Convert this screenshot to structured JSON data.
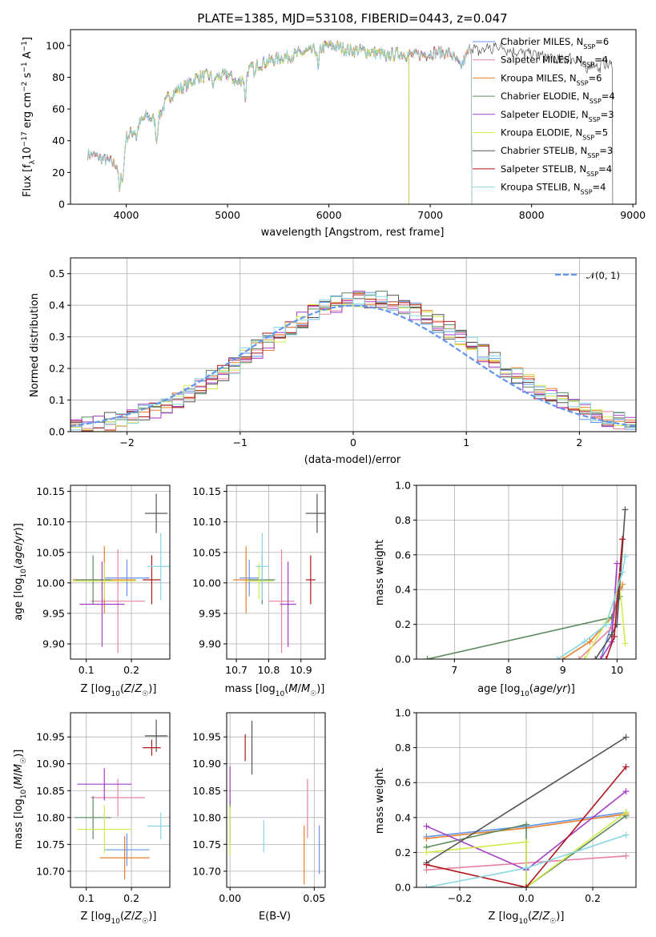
{
  "colors": {
    "Chabrier MILES": "#6495ed",
    "Salpeter MILES": "#e7839f",
    "Kroupa MILES": "#e87e2a",
    "Chabrier ELODIE": "#5a8a5f",
    "Salpeter ELODIE": "#a63ec7",
    "Kroupa ELODIE": "#d4ea4b",
    "Chabrier STELIB": "#555555",
    "Salpeter STELIB": "#b0161e",
    "Kroupa STELIB": "#88d8e2"
  },
  "chart_data": [
    {
      "id": "spectrum",
      "type": "line",
      "title": "PLATE=1385, MJD=53108, FIBERID=0443, z=0.047",
      "xlabel": "wavelength [Angstrom, rest frame]",
      "ylabel": "Flux [f_λ 10^-17 erg cm^-2 s^-1 A^-1]",
      "xlim": [
        3450,
        9030
      ],
      "ylim": [
        0,
        110
      ],
      "xticks": [
        4000,
        5000,
        6000,
        7000,
        8000,
        9000
      ],
      "yticks": [
        0,
        20,
        40,
        60,
        80,
        100
      ],
      "legend": "top-right",
      "x": [
        3620,
        3700,
        3800,
        3900,
        3950,
        4000,
        4100,
        4200,
        4300,
        4400,
        4500,
        4600,
        4700,
        4800,
        4900,
        5000,
        5100,
        5200,
        5300,
        5400,
        5500,
        5600,
        5700,
        5800,
        5900,
        6000,
        6100,
        6200,
        6300,
        6400,
        6500,
        6600,
        6700,
        6800,
        6900,
        7000,
        7100,
        7200,
        7300,
        7400,
        7500,
        7600,
        7700,
        7800,
        7900,
        8000,
        8100,
        8200,
        8300,
        8400,
        8500,
        8600,
        8700,
        8800
      ],
      "flux": [
        32,
        30,
        28,
        25,
        20,
        42,
        48,
        56,
        52,
        66,
        72,
        75,
        80,
        81,
        80,
        82,
        76,
        84,
        88,
        90,
        92,
        93,
        95,
        96,
        98,
        100,
        99,
        97,
        97,
        96,
        95,
        94,
        95,
        94,
        94,
        95,
        96,
        95,
        86,
        99,
        96,
        101,
        99,
        97,
        95,
        95,
        93,
        92,
        91,
        92,
        90,
        88,
        89,
        88
      ],
      "series": [
        {
          "name": "Chabrier MILES, N_SSP=6",
          "color_key": "Chabrier MILES",
          "wmin": 3620,
          "wmax": 7410
        },
        {
          "name": "Salpeter MILES, N_SSP=4",
          "color_key": "Salpeter MILES",
          "wmin": 3620,
          "wmax": 7410
        },
        {
          "name": "Kroupa MILES, N_SSP=6",
          "color_key": "Kroupa MILES",
          "wmin": 3620,
          "wmax": 7410
        },
        {
          "name": "Chabrier ELODIE, N_SSP=4",
          "color_key": "Chabrier ELODIE",
          "wmin": 3910,
          "wmax": 6790
        },
        {
          "name": "Salpeter ELODIE, N_SSP=3",
          "color_key": "Salpeter ELODIE",
          "wmin": 3910,
          "wmax": 6790
        },
        {
          "name": "Kroupa ELODIE, N_SSP=5",
          "color_key": "Kroupa ELODIE",
          "wmin": 3910,
          "wmax": 6790
        },
        {
          "name": "Chabrier STELIB, N_SSP=3",
          "color_key": "Chabrier STELIB",
          "wmin": 3620,
          "wmax": 8800
        },
        {
          "name": "Salpeter STELIB, N_SSP=4",
          "color_key": "Salpeter STELIB",
          "wmin": 3620,
          "wmax": 7410
        },
        {
          "name": "Kroupa STELIB, N_SSP=4",
          "color_key": "Kroupa STELIB",
          "wmin": 3620,
          "wmax": 7410
        }
      ]
    },
    {
      "id": "residuals",
      "type": "line",
      "xlabel": "(data-model)/error",
      "ylabel": "Normed distribution",
      "xlim": [
        -2.5,
        2.5
      ],
      "ylim": [
        0,
        0.55
      ],
      "xticks": [
        -2,
        -1,
        0,
        1,
        2
      ],
      "yticks": [
        0.0,
        0.1,
        0.2,
        0.3,
        0.4,
        0.5
      ],
      "grid": true,
      "legend": "top-right",
      "gaussian_label": "𝒩(0, 1)",
      "gaussian_color": "#6495ed",
      "bin_width": 0.1
    },
    {
      "id": "age_vs_Z",
      "type": "scatter",
      "xlabel": "Z [log₁₀(Z/Z☉)]",
      "ylabel": "age  [log₁₀(age/yr)]",
      "xlim": [
        0.065,
        0.285
      ],
      "ylim": [
        9.875,
        10.16
      ],
      "xticks": [
        0.1,
        0.2
      ],
      "yticks": [
        9.9,
        9.95,
        10.0,
        10.05,
        10.1,
        10.15
      ],
      "grid": true,
      "points": [
        {
          "color_key": "Chabrier MILES",
          "x": 0.19,
          "xerr": 0.05,
          "y": 10.008,
          "yerr": 0.03
        },
        {
          "color_key": "Salpeter MILES",
          "x": 0.17,
          "xerr": 0.06,
          "y": 9.97,
          "yerr": 0.085
        },
        {
          "color_key": "Kroupa MILES",
          "x": 0.14,
          "xerr": 0.07,
          "y": 10.005,
          "yerr": 0.055
        },
        {
          "color_key": "Chabrier ELODIE",
          "x": 0.115,
          "xerr": 0.04,
          "y": 10.005,
          "yerr": 0.04
        },
        {
          "color_key": "Salpeter ELODIE",
          "x": 0.135,
          "xerr": 0.05,
          "y": 9.965,
          "yerr": 0.07
        },
        {
          "color_key": "Kroupa ELODIE",
          "x": 0.14,
          "xerr": 0.07,
          "y": 10.003,
          "yerr": 0.03
        },
        {
          "color_key": "Chabrier STELIB",
          "x": 0.255,
          "xerr": 0.025,
          "y": 10.114,
          "yerr": 0.032
        },
        {
          "color_key": "Salpeter STELIB",
          "x": 0.245,
          "xerr": 0.02,
          "y": 10.005,
          "yerr": 0.04
        },
        {
          "color_key": "Kroupa STELIB",
          "x": 0.265,
          "xerr": 0.03,
          "y": 10.027,
          "yerr": 0.055
        }
      ]
    },
    {
      "id": "age_vs_mass",
      "type": "scatter",
      "xlabel": "mass [log₁₀(M/M☉)]",
      "xlim": [
        10.67,
        10.975
      ],
      "ylim": [
        9.875,
        10.16
      ],
      "xticks": [
        10.7,
        10.8,
        10.9
      ],
      "yticks": [
        9.9,
        9.95,
        10.0,
        10.05,
        10.1,
        10.15
      ],
      "grid": true,
      "points": [
        {
          "color_key": "Chabrier MILES",
          "x": 10.74,
          "xerr": 0.03,
          "y": 10.008,
          "yerr": 0.03
        },
        {
          "color_key": "Salpeter MILES",
          "x": 10.84,
          "xerr": 0.04,
          "y": 9.97,
          "yerr": 0.085
        },
        {
          "color_key": "Kroupa MILES",
          "x": 10.73,
          "xerr": 0.04,
          "y": 10.005,
          "yerr": 0.055
        },
        {
          "color_key": "Chabrier ELODIE",
          "x": 10.78,
          "xerr": 0.04,
          "y": 10.005,
          "yerr": 0.04
        },
        {
          "color_key": "Salpeter ELODIE",
          "x": 10.86,
          "xerr": 0.025,
          "y": 9.965,
          "yerr": 0.07
        },
        {
          "color_key": "Kroupa ELODIE",
          "x": 10.77,
          "xerr": 0.045,
          "y": 10.003,
          "yerr": 0.03
        },
        {
          "color_key": "Chabrier STELIB",
          "x": 10.95,
          "xerr": 0.035,
          "y": 10.114,
          "yerr": 0.032
        },
        {
          "color_key": "Salpeter STELIB",
          "x": 10.93,
          "xerr": 0.015,
          "y": 10.005,
          "yerr": 0.04
        },
        {
          "color_key": "Kroupa STELIB",
          "x": 10.78,
          "xerr": 0.02,
          "y": 10.027,
          "yerr": 0.055
        }
      ]
    },
    {
      "id": "mass_weight_vs_age",
      "type": "line",
      "xlabel": "age  [log₁₀(age/yr)]",
      "ylabel": "mass weight",
      "xlim": [
        6.3,
        10.35
      ],
      "ylim": [
        0,
        1
      ],
      "xticks": [
        7,
        8,
        9,
        10
      ],
      "yticks": [
        0.0,
        0.2,
        0.4,
        0.6,
        0.8,
        1.0
      ],
      "grid": true,
      "series": [
        {
          "color_key": "Chabrier MILES",
          "x": [
            9.7,
            9.9,
            10.0,
            10.05
          ],
          "y": [
            0.0,
            0.2,
            0.35,
            0.41
          ]
        },
        {
          "color_key": "Salpeter MILES",
          "x": [
            9.3,
            9.9,
            10.05
          ],
          "y": [
            0.0,
            0.18,
            0.4
          ]
        },
        {
          "color_key": "Kroupa MILES",
          "x": [
            9.0,
            9.5,
            9.9,
            10.1
          ],
          "y": [
            0.0,
            0.1,
            0.24,
            0.43
          ]
        },
        {
          "color_key": "Chabrier ELODIE",
          "x": [
            6.5,
            9.9,
            10.05
          ],
          "y": [
            0.0,
            0.24,
            0.36
          ]
        },
        {
          "color_key": "Salpeter ELODIE",
          "x": [
            9.7,
            9.9,
            10.0
          ],
          "y": [
            0.0,
            0.1,
            0.55
          ]
        },
        {
          "color_key": "Kroupa ELODIE",
          "x": [
            9.4,
            9.8,
            10.05,
            10.15
          ],
          "y": [
            0.0,
            0.21,
            0.43,
            0.09
          ]
        },
        {
          "color_key": "Chabrier STELIB",
          "x": [
            9.6,
            9.9,
            10.0,
            10.15
          ],
          "y": [
            0.0,
            0.14,
            0.2,
            0.86
          ]
        },
        {
          "color_key": "Salpeter STELIB",
          "x": [
            9.8,
            9.95,
            10.1
          ],
          "y": [
            0.0,
            0.13,
            0.69
          ]
        },
        {
          "color_key": "Kroupa STELIB",
          "x": [
            8.9,
            9.4,
            9.8,
            10.1,
            10.15
          ],
          "y": [
            0.0,
            0.1,
            0.2,
            0.5,
            0.59
          ]
        }
      ]
    },
    {
      "id": "mass_vs_Z",
      "type": "scatter",
      "xlabel": "Z [log₁₀(Z/Z☉)]",
      "ylabel": "mass [log₁₀(M/M☉)]",
      "xlim": [
        0.065,
        0.285
      ],
      "ylim": [
        10.67,
        10.995
      ],
      "xticks": [
        0.1,
        0.2
      ],
      "yticks": [
        10.7,
        10.75,
        10.8,
        10.85,
        10.9,
        10.95
      ],
      "grid": true,
      "points": [
        {
          "color_key": "Chabrier MILES",
          "x": 0.19,
          "xerr": 0.05,
          "y": 10.74,
          "yerr": 0.03
        },
        {
          "color_key": "Salpeter MILES",
          "x": 0.17,
          "xerr": 0.06,
          "y": 10.837,
          "yerr": 0.035
        },
        {
          "color_key": "Kroupa MILES",
          "x": 0.185,
          "xerr": 0.055,
          "y": 10.725,
          "yerr": 0.04
        },
        {
          "color_key": "Chabrier ELODIE",
          "x": 0.115,
          "xerr": 0.04,
          "y": 10.8,
          "yerr": 0.04
        },
        {
          "color_key": "Salpeter ELODIE",
          "x": 0.14,
          "xerr": 0.06,
          "y": 10.862,
          "yerr": 0.03
        },
        {
          "color_key": "Kroupa ELODIE",
          "x": 0.14,
          "xerr": 0.06,
          "y": 10.778,
          "yerr": 0.045
        },
        {
          "color_key": "Chabrier STELIB",
          "x": 0.255,
          "xerr": 0.025,
          "y": 10.952,
          "yerr": 0.03
        },
        {
          "color_key": "Salpeter STELIB",
          "x": 0.245,
          "xerr": 0.02,
          "y": 10.93,
          "yerr": 0.015
        },
        {
          "color_key": "Kroupa STELIB",
          "x": 0.265,
          "xerr": 0.03,
          "y": 10.784,
          "yerr": 0.025
        }
      ]
    },
    {
      "id": "mass_vs_ebv",
      "type": "scatter",
      "xlabel": "E(B-V)",
      "xlim": [
        -0.002,
        0.0565
      ],
      "ylim": [
        10.67,
        10.995
      ],
      "xticks": [
        0.0,
        0.05
      ],
      "yticks": [
        10.7,
        10.75,
        10.8,
        10.85,
        10.9,
        10.95
      ],
      "grid": true,
      "points": [
        {
          "color_key": "Chabrier MILES",
          "x": 0.053,
          "xerr": 0,
          "y": 10.74,
          "yerr": 0.045
        },
        {
          "color_key": "Salpeter MILES",
          "x": 0.046,
          "xerr": 0,
          "y": 10.817,
          "yerr": 0.055
        },
        {
          "color_key": "Kroupa MILES",
          "x": 0.044,
          "xerr": 0,
          "y": 10.73,
          "yerr": 0.055
        },
        {
          "color_key": "Chabrier ELODIE",
          "x": 0.0,
          "xerr": 0,
          "y": 10.79,
          "yerr": 0.04
        },
        {
          "color_key": "Salpeter ELODIE",
          "x": 0.0,
          "xerr": 0,
          "y": 10.86,
          "yerr": 0.035
        },
        {
          "color_key": "Kroupa ELODIE",
          "x": 0.0,
          "xerr": 0,
          "y": 10.775,
          "yerr": 0.045
        },
        {
          "color_key": "Chabrier STELIB",
          "x": 0.013,
          "xerr": 0,
          "y": 10.93,
          "yerr": 0.05
        },
        {
          "color_key": "Salpeter STELIB",
          "x": 0.009,
          "xerr": 0,
          "y": 10.93,
          "yerr": 0.025
        },
        {
          "color_key": "Kroupa STELIB",
          "x": 0.02,
          "xerr": 0,
          "y": 10.765,
          "yerr": 0.03
        }
      ]
    },
    {
      "id": "mass_weight_vs_Z",
      "type": "line",
      "xlabel": "Z [log₁₀(Z/Z☉)]",
      "ylabel": "mass weight",
      "xlim": [
        -0.33,
        0.33
      ],
      "ylim": [
        0,
        1
      ],
      "xticks": [
        -0.2,
        0.0,
        0.2
      ],
      "yticks": [
        0.0,
        0.2,
        0.4,
        0.6,
        0.8,
        1.0
      ],
      "grid": true,
      "series": [
        {
          "color_key": "Chabrier MILES",
          "x": [
            -0.3,
            0.0,
            0.3
          ],
          "y": [
            0.29,
            0.35,
            0.43
          ]
        },
        {
          "color_key": "Salpeter MILES",
          "x": [
            -0.3,
            0.3
          ],
          "y": [
            0.1,
            0.18
          ]
        },
        {
          "color_key": "Kroupa MILES",
          "x": [
            -0.3,
            0.0,
            0.3
          ],
          "y": [
            0.28,
            0.34,
            0.42
          ]
        },
        {
          "color_key": "Chabrier ELODIE",
          "x": [
            -0.3,
            0.0,
            0.0,
            0.3
          ],
          "y": [
            0.23,
            0.36,
            0.0,
            0.41
          ]
        },
        {
          "color_key": "Salpeter ELODIE",
          "x": [
            -0.3,
            0.0,
            0.0,
            0.3
          ],
          "y": [
            0.35,
            0.1,
            0.1,
            0.55
          ]
        },
        {
          "color_key": "Kroupa ELODIE",
          "x": [
            -0.3,
            0.0,
            0.0,
            0.3
          ],
          "y": [
            0.2,
            0.26,
            0.0,
            0.43
          ]
        },
        {
          "color_key": "Chabrier STELIB",
          "x": [
            -0.3,
            0.3
          ],
          "y": [
            0.14,
            0.86
          ]
        },
        {
          "color_key": "Salpeter STELIB",
          "x": [
            -0.3,
            0.0,
            0.3
          ],
          "y": [
            0.13,
            0.0,
            0.69
          ]
        },
        {
          "color_key": "Kroupa STELIB",
          "x": [
            -0.3,
            0.0,
            0.3
          ],
          "y": [
            0.0,
            0.11,
            0.3
          ]
        }
      ]
    }
  ]
}
